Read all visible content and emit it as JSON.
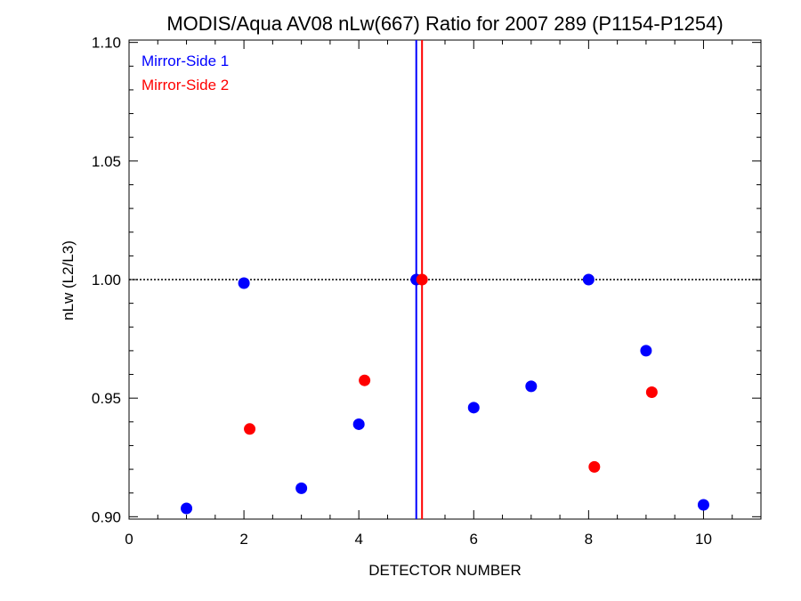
{
  "chart_data": {
    "type": "scatter",
    "title": "MODIS/Aqua AV08 nLw(667) Ratio for 2007 289 (P1154-P1254)",
    "xlabel": "DETECTOR NUMBER",
    "ylabel": "nLw (L2/L3)",
    "xlim": [
      0,
      11
    ],
    "ylim": [
      0.899,
      1.101
    ],
    "x_ticks": [
      0,
      2,
      4,
      6,
      8,
      10
    ],
    "x_tick_labels": [
      "0",
      "2",
      "4",
      "6",
      "8",
      "10"
    ],
    "y_ticks": [
      0.9,
      0.95,
      1.0,
      1.05,
      1.1
    ],
    "y_tick_labels": [
      "0.90",
      "0.95",
      "1.00",
      "1.05",
      "1.10"
    ],
    "reference_line_y": 1.0,
    "legend_position": "top-left",
    "series": [
      {
        "name": "Mirror-Side 1",
        "color": "#0000ff",
        "vline_x": 5.0,
        "x": [
          1,
          2,
          3,
          4,
          5,
          6,
          7,
          8,
          9,
          10
        ],
        "y": [
          0.9035,
          0.9985,
          0.912,
          0.939,
          1.0,
          0.946,
          0.955,
          1.0,
          0.97,
          0.905
        ]
      },
      {
        "name": "Mirror-Side 2",
        "color": "#ff0000",
        "vline_x": 5.1,
        "x": [
          2.1,
          4.1,
          5.1,
          8.1,
          9.1
        ],
        "y": [
          0.937,
          0.9575,
          1.0,
          0.921,
          0.9525
        ]
      }
    ]
  }
}
